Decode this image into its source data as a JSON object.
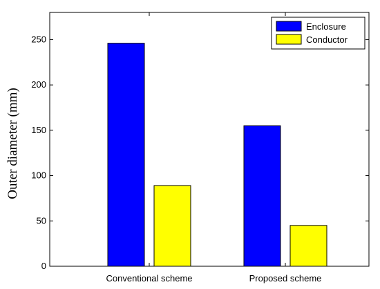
{
  "chart_data": {
    "type": "bar",
    "title": "",
    "xlabel": "",
    "ylabel": "Outer diameter (mm)",
    "categories": [
      "Conventional scheme",
      "Proposed scheme"
    ],
    "series": [
      {
        "name": "Enclosure",
        "values": [
          246,
          155
        ],
        "color": "#0000ff"
      },
      {
        "name": "Conductor",
        "values": [
          89,
          45
        ],
        "color": "#ffff00"
      }
    ],
    "ylim": [
      0,
      280
    ],
    "yticks": [
      0,
      50,
      100,
      150,
      200,
      250
    ],
    "grid": false,
    "legend_position": "top-right"
  }
}
